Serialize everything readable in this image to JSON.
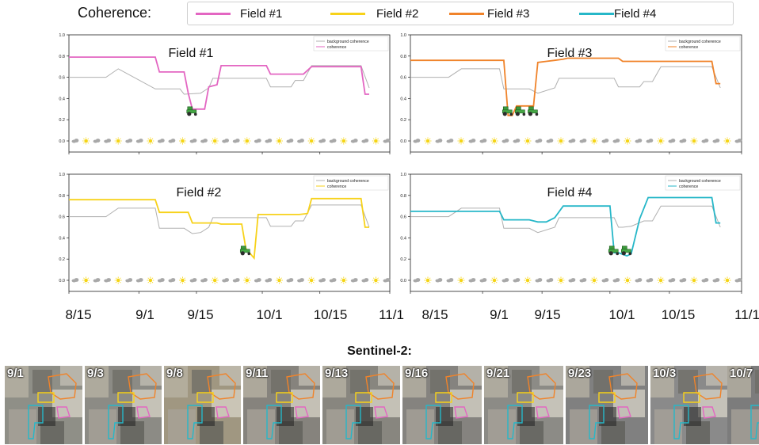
{
  "legend": {
    "label": "Coherence:",
    "items": [
      {
        "name": "Field #1",
        "color": "#e366c2"
      },
      {
        "name": "Field #2",
        "color": "#f7d21a"
      },
      {
        "name": "Field #3",
        "color": "#f0832a"
      },
      {
        "name": "Field #4",
        "color": "#26b7c8"
      }
    ]
  },
  "x_axis_labels": [
    "8/15",
    "9/1",
    "9/15",
    "10/1",
    "10/15",
    "11/1"
  ],
  "sentinel": {
    "title": "Sentinel-2:",
    "dates": [
      "9/1",
      "9/3",
      "9/8",
      "9/11",
      "9/13",
      "9/16",
      "9/21",
      "9/23",
      "10/3",
      "10/7"
    ]
  },
  "chart_data": [
    {
      "type": "line",
      "title": "Field #1",
      "x_range": [
        "8/15",
        "11/1"
      ],
      "ylim": [
        0,
        1.0
      ],
      "yticks": [
        0.0,
        0.2,
        0.4,
        0.6,
        0.8,
        1.0
      ],
      "legend": {
        "position": "top-right",
        "entries": [
          "background coherence",
          "coherence"
        ]
      },
      "series": [
        {
          "name": "background coherence",
          "color": "#b0b0b0",
          "x": [
            "8/15",
            "8/24",
            "8/27",
            "9/5",
            "9/11",
            "9/12",
            "9/16",
            "9/18",
            "9/19",
            "9/21",
            "10/2",
            "10/3",
            "10/8",
            "10/9",
            "10/11",
            "10/13",
            "10/25",
            "10/27"
          ],
          "y": [
            0.6,
            0.6,
            0.68,
            0.49,
            0.49,
            0.44,
            0.45,
            0.5,
            0.59,
            0.59,
            0.59,
            0.51,
            0.51,
            0.57,
            0.57,
            0.71,
            0.71,
            0.5
          ]
        },
        {
          "name": "coherence",
          "color": "#e366c2",
          "x": [
            "8/15",
            "9/5",
            "9/6",
            "9/12",
            "9/13",
            "9/14",
            "9/17",
            "9/18",
            "9/20",
            "9/21",
            "10/2",
            "10/3",
            "10/11",
            "10/13",
            "10/25",
            "10/26",
            "10/27"
          ],
          "y": [
            0.79,
            0.79,
            0.65,
            0.65,
            0.45,
            0.3,
            0.3,
            0.51,
            0.53,
            0.71,
            0.71,
            0.63,
            0.63,
            0.7,
            0.7,
            0.44,
            0.44
          ]
        }
      ],
      "tractor_events": [
        "9/14"
      ]
    },
    {
      "type": "line",
      "title": "Field #3",
      "x_range": [
        "8/15",
        "11/1"
      ],
      "ylim": [
        0,
        1.0
      ],
      "yticks": [
        0.0,
        0.2,
        0.4,
        0.6,
        0.8,
        1.0
      ],
      "legend": {
        "position": "top-right",
        "entries": [
          "background coherence",
          "coherence"
        ]
      },
      "series": [
        {
          "name": "background coherence",
          "color": "#b0b0b0",
          "x": [
            "8/15",
            "8/24",
            "8/27",
            "9/5",
            "9/6",
            "9/12",
            "9/14",
            "9/18",
            "9/19",
            "9/21",
            "10/2",
            "10/3",
            "10/8",
            "10/9",
            "10/11",
            "10/13",
            "10/25",
            "10/27"
          ],
          "y": [
            0.6,
            0.6,
            0.68,
            0.68,
            0.49,
            0.49,
            0.45,
            0.5,
            0.59,
            0.59,
            0.59,
            0.51,
            0.51,
            0.56,
            0.56,
            0.7,
            0.7,
            0.5
          ]
        },
        {
          "name": "coherence",
          "color": "#f0832a",
          "x": [
            "8/15",
            "9/6",
            "9/7",
            "9/8",
            "9/9",
            "9/10",
            "9/13",
            "9/14",
            "9/16",
            "9/18",
            "9/20",
            "9/21",
            "10/3",
            "10/4",
            "10/25",
            "10/26",
            "10/27"
          ],
          "y": [
            0.76,
            0.76,
            0.24,
            0.24,
            0.33,
            0.33,
            0.33,
            0.74,
            0.75,
            0.76,
            0.77,
            0.78,
            0.78,
            0.75,
            0.75,
            0.54,
            0.54
          ]
        }
      ],
      "tractor_events": [
        "9/7",
        "9/10",
        "9/13"
      ]
    },
    {
      "type": "line",
      "title": "Field #2",
      "x_range": [
        "8/15",
        "11/1"
      ],
      "ylim": [
        0,
        1.0
      ],
      "yticks": [
        0.0,
        0.2,
        0.4,
        0.6,
        0.8,
        1.0
      ],
      "legend": {
        "position": "top-right",
        "entries": [
          "background coherence",
          "coherence"
        ]
      },
      "series": [
        {
          "name": "background coherence",
          "color": "#b0b0b0",
          "x": [
            "8/15",
            "8/24",
            "8/27",
            "9/5",
            "9/6",
            "9/12",
            "9/14",
            "9/16",
            "9/18",
            "9/19",
            "9/21",
            "10/2",
            "10/3",
            "10/8",
            "10/9",
            "10/11",
            "10/13",
            "10/25",
            "10/27"
          ],
          "y": [
            0.6,
            0.6,
            0.68,
            0.68,
            0.49,
            0.49,
            0.44,
            0.45,
            0.5,
            0.59,
            0.59,
            0.59,
            0.51,
            0.51,
            0.56,
            0.56,
            0.71,
            0.71,
            0.5
          ]
        },
        {
          "name": "coherence",
          "color": "#f7d21a",
          "x": [
            "8/15",
            "9/5",
            "9/6",
            "9/13",
            "9/14",
            "9/20",
            "9/21",
            "9/26",
            "9/27",
            "9/29",
            "9/30",
            "10/10",
            "10/12",
            "10/13",
            "10/25",
            "10/26",
            "10/27"
          ],
          "y": [
            0.76,
            0.76,
            0.64,
            0.64,
            0.54,
            0.54,
            0.53,
            0.53,
            0.3,
            0.21,
            0.62,
            0.62,
            0.63,
            0.77,
            0.77,
            0.5,
            0.5
          ]
        }
      ],
      "tractor_events": [
        "9/27"
      ]
    },
    {
      "type": "line",
      "title": "Field #4",
      "x_range": [
        "8/15",
        "11/1"
      ],
      "ylim": [
        0,
        1.0
      ],
      "yticks": [
        0.0,
        0.2,
        0.4,
        0.6,
        0.8,
        1.0
      ],
      "legend": {
        "position": "top-right",
        "entries": [
          "background coherence",
          "coherence"
        ]
      },
      "series": [
        {
          "name": "background coherence",
          "color": "#b0b0b0",
          "x": [
            "8/15",
            "8/24",
            "8/27",
            "9/5",
            "9/6",
            "9/12",
            "9/14",
            "9/18",
            "9/19",
            "9/21",
            "10/1",
            "10/2",
            "10/3",
            "10/4",
            "10/6",
            "10/9",
            "10/11",
            "10/13",
            "10/25",
            "10/27"
          ],
          "y": [
            0.6,
            0.6,
            0.68,
            0.68,
            0.49,
            0.49,
            0.45,
            0.5,
            0.59,
            0.59,
            0.59,
            0.59,
            0.5,
            0.5,
            0.51,
            0.56,
            0.56,
            0.7,
            0.7,
            0.5
          ]
        },
        {
          "name": "coherence",
          "color": "#26b7c8",
          "x": [
            "8/15",
            "9/5",
            "9/6",
            "9/12",
            "9/14",
            "9/16",
            "9/18",
            "9/20",
            "10/1",
            "10/2",
            "10/3",
            "10/5",
            "10/6",
            "10/8",
            "10/10",
            "10/25",
            "10/26",
            "10/27"
          ],
          "y": [
            0.65,
            0.65,
            0.57,
            0.57,
            0.55,
            0.55,
            0.59,
            0.7,
            0.7,
            0.26,
            0.26,
            0.23,
            0.25,
            0.58,
            0.78,
            0.78,
            0.54,
            0.54
          ]
        }
      ],
      "tractor_events": [
        "10/2",
        "10/5"
      ]
    }
  ]
}
